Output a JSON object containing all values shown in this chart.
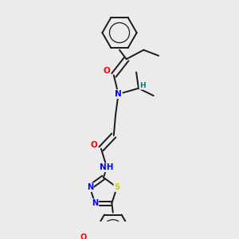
{
  "background_color": "#ebebeb",
  "bond_color": "#1a1a1a",
  "atom_colors": {
    "O": "#ff0000",
    "N": "#0000ff",
    "S": "#cccc00",
    "H": "#008080",
    "C": "#1a1a1a"
  },
  "bond_lw": 1.4,
  "font_size": 7.5
}
